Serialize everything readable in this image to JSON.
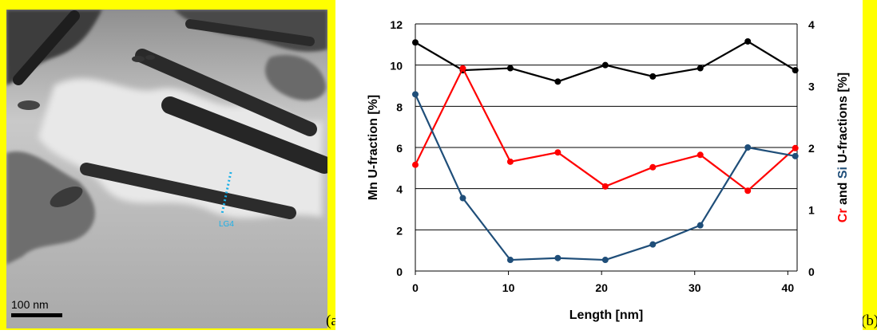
{
  "figure": {
    "panel_a_label": "(a)",
    "panel_b_label": "(b)",
    "scale_bar_label": "100 nm",
    "line_label": "LG4"
  },
  "colors": {
    "highlight": "#ffff00",
    "mn": "#000000",
    "cr": "#ff0000",
    "si": "#1f4e79",
    "measurement_line": "#1ab0e8"
  },
  "chart_data": {
    "type": "line",
    "xlabel": "Length [nm]",
    "ylabel_left": "Mn U-fraction  [%]",
    "ylabel_right_parts": [
      "Cr",
      " and ",
      "Si",
      "  U-fractions  [%]"
    ],
    "x_ticks": [
      0,
      10,
      20,
      30,
      40
    ],
    "xlim": [
      0,
      41
    ],
    "ylim_left": [
      0,
      12
    ],
    "y_ticks_left": [
      0,
      2,
      4,
      6,
      8,
      10,
      12
    ],
    "ylim_right": [
      0,
      4
    ],
    "y_ticks_right": [
      0,
      1,
      2,
      3,
      4
    ],
    "grid": "horizontal",
    "series": [
      {
        "name": "Mn",
        "axis": "left",
        "color": "#000000",
        "x": [
          0,
          5.1,
          10.2,
          15.3,
          20.4,
          25.5,
          30.6,
          35.7,
          40.8
        ],
        "values": [
          11.1,
          9.75,
          9.85,
          9.2,
          10.0,
          9.45,
          9.85,
          11.15,
          9.75
        ]
      },
      {
        "name": "Cr",
        "axis": "right",
        "color": "#ff0000",
        "x": [
          0,
          5.1,
          10.2,
          15.3,
          20.4,
          25.5,
          30.6,
          35.7,
          40.8
        ],
        "values": [
          1.72,
          3.28,
          1.77,
          1.92,
          1.37,
          1.68,
          1.88,
          1.3,
          1.99
        ]
      },
      {
        "name": "Si",
        "axis": "right",
        "color": "#1f4e79",
        "x": [
          0,
          5.1,
          10.2,
          15.3,
          20.4,
          25.5,
          30.6,
          35.7,
          40.8
        ],
        "values": [
          2.86,
          1.18,
          0.18,
          0.21,
          0.18,
          0.43,
          0.74,
          2.0,
          1.86
        ]
      }
    ]
  }
}
